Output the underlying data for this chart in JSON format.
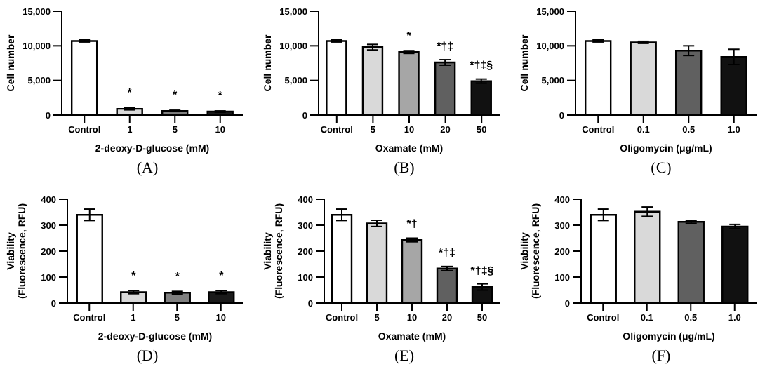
{
  "chart_data": [
    {
      "type": "bar",
      "title": "(A)",
      "ylabel": "Cell number",
      "xlabel": "2-deoxy-D-glucose (mM)",
      "categories": [
        "Control",
        "1",
        "5",
        "10"
      ],
      "values": [
        10700,
        900,
        600,
        500
      ],
      "errors": [
        150,
        150,
        100,
        100
      ],
      "colors": [
        "#ffffff",
        "#d9d9d9",
        "#808080",
        "#1a1a1a"
      ],
      "ylim": [
        0,
        15000
      ],
      "yticks": [
        0,
        {
          "value": 5000,
          "label": "5,000"
        },
        {
          "value": 10000,
          "label": "10,000"
        },
        {
          "value": 15000,
          "label": "15,000"
        }
      ],
      "value_labels": [
        null,
        "*",
        "*",
        "*"
      ]
    },
    {
      "type": "bar",
      "title": "(B)",
      "ylabel": "Cell number",
      "xlabel": "Oxamate (mM)",
      "categories": [
        "Control",
        "5",
        "10",
        "20",
        "50"
      ],
      "values": [
        10700,
        9800,
        9100,
        7600,
        4900
      ],
      "errors": [
        150,
        400,
        200,
        400,
        300
      ],
      "colors": [
        "#ffffff",
        "#d9d9d9",
        "#a6a6a6",
        "#606060",
        "#111111"
      ],
      "ylim": [
        0,
        15000
      ],
      "yticks": [
        0,
        {
          "value": 5000,
          "label": "5,000"
        },
        {
          "value": 10000,
          "label": "10,000"
        },
        {
          "value": 15000,
          "label": "15,000"
        }
      ],
      "value_labels": [
        null,
        null,
        "*",
        "*†‡",
        "*†‡§"
      ]
    },
    {
      "type": "bar",
      "title": "(C)",
      "ylabel": "Cell number",
      "xlabel": "Oligomycin (μg/mL)",
      "categories": [
        "Control",
        "0.1",
        "0.5",
        "1.0"
      ],
      "values": [
        10700,
        10500,
        9300,
        8400
      ],
      "errors": [
        150,
        150,
        700,
        1100
      ],
      "colors": [
        "#ffffff",
        "#d9d9d9",
        "#606060",
        "#111111"
      ],
      "ylim": [
        0,
        15000
      ],
      "yticks": [
        0,
        {
          "value": 5000,
          "label": "5,000"
        },
        {
          "value": 10000,
          "label": "10,000"
        },
        {
          "value": 15000,
          "label": "15,000"
        }
      ]
    },
    {
      "type": "bar",
      "title": "(D)",
      "ylabel": "Viability\n(Fluorescence, RFU)",
      "xlabel": "2-deoxy-D-glucose (mM)",
      "categories": [
        "Control",
        "1",
        "5",
        "10"
      ],
      "values": [
        340,
        42,
        40,
        42
      ],
      "errors": [
        22,
        6,
        5,
        6
      ],
      "colors": [
        "#ffffff",
        "#d9d9d9",
        "#808080",
        "#1a1a1a"
      ],
      "ylim": [
        0,
        400
      ],
      "yticks": [
        0,
        100,
        200,
        300,
        400
      ],
      "value_labels": [
        null,
        "*",
        "*",
        "*"
      ]
    },
    {
      "type": "bar",
      "title": "(E)",
      "ylabel": "Viability\n(Fluorescence, RFU)",
      "xlabel": "Oxamate (mM)",
      "categories": [
        "Control",
        "5",
        "10",
        "20",
        "50"
      ],
      "values": [
        340,
        307,
        243,
        133,
        62
      ],
      "errors": [
        22,
        12,
        7,
        8,
        12
      ],
      "colors": [
        "#ffffff",
        "#d9d9d9",
        "#a6a6a6",
        "#606060",
        "#111111"
      ],
      "ylim": [
        0,
        400
      ],
      "yticks": [
        0,
        100,
        200,
        300,
        400
      ],
      "value_labels": [
        null,
        null,
        "*†",
        "*†‡",
        "*†‡§"
      ]
    },
    {
      "type": "bar",
      "title": "(F)",
      "ylabel": "Viability\n(Fluorescence, RFU)",
      "xlabel": "Oligomycin (μg/mL)",
      "categories": [
        "Control",
        "0.1",
        "0.5",
        "1.0"
      ],
      "values": [
        340,
        352,
        313,
        295
      ],
      "errors": [
        22,
        18,
        6,
        8
      ],
      "colors": [
        "#ffffff",
        "#d9d9d9",
        "#606060",
        "#111111"
      ],
      "ylim": [
        0,
        400
      ],
      "yticks": [
        0,
        100,
        200,
        300,
        400
      ]
    }
  ]
}
